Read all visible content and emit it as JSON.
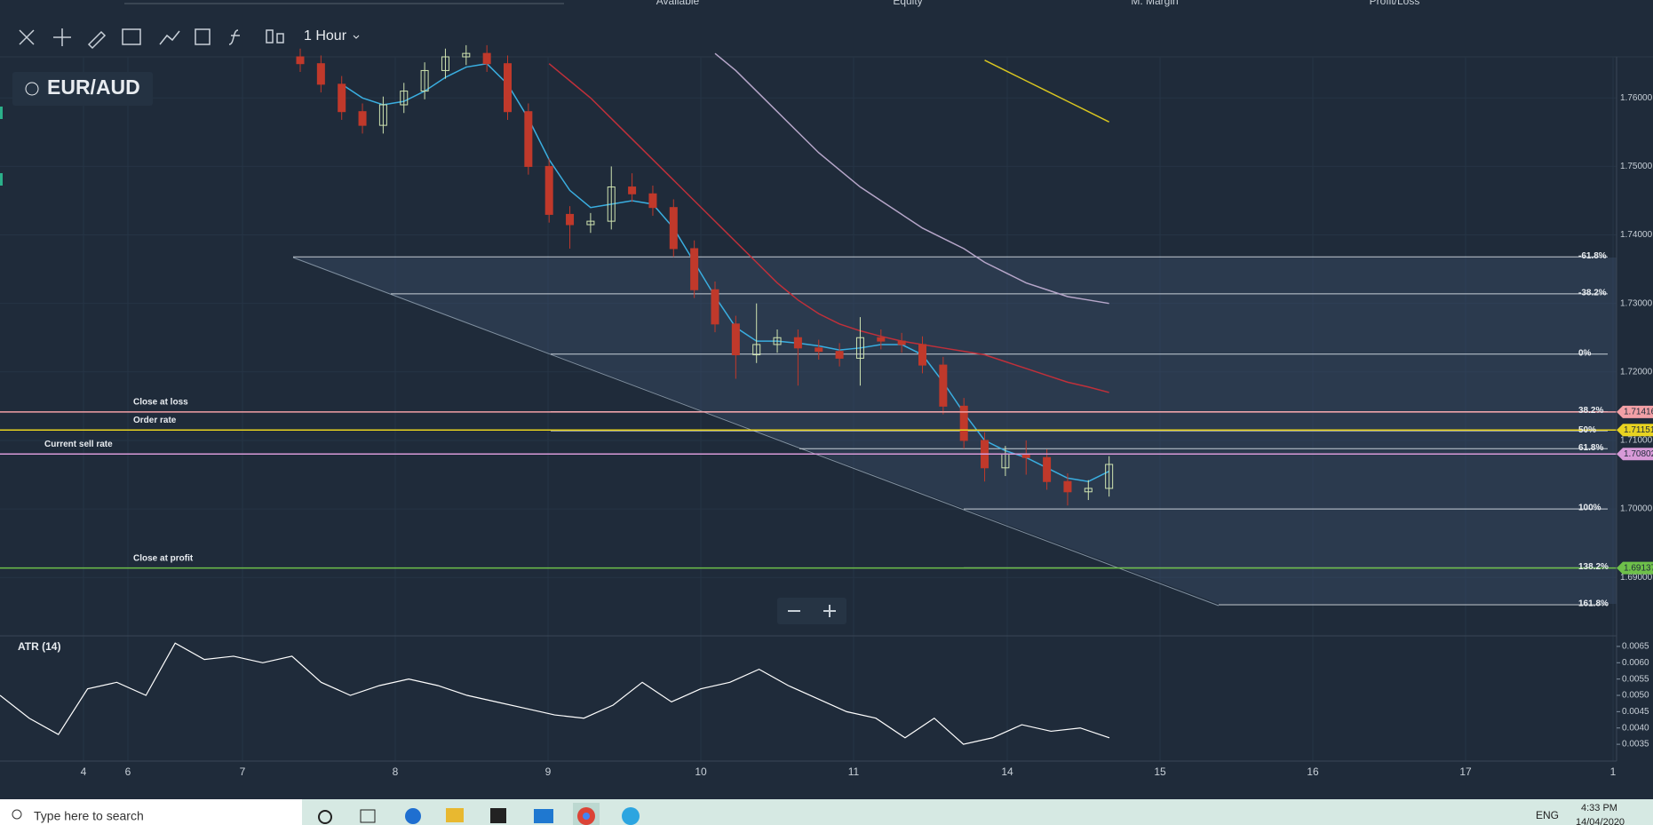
{
  "header": {
    "labels": [
      "Available",
      "Equity",
      "M. Margin",
      "Profit/Loss"
    ]
  },
  "toolbar": {
    "timeframe": "1 Hour"
  },
  "chart_data": [
    {
      "type": "candlestick",
      "title": "EUR/AUD",
      "ylim": [
        1.6816,
        1.766
      ],
      "yticks": [
        {
          "value": 1.76,
          "label": "1.76000"
        },
        {
          "value": 1.75,
          "label": "1.75000"
        },
        {
          "value": 1.74,
          "label": "1.74000"
        },
        {
          "value": 1.73,
          "label": "1.73000"
        },
        {
          "value": 1.72,
          "label": "1.72000"
        },
        {
          "value": 1.71,
          "label": "1.71000"
        },
        {
          "value": 1.7,
          "label": "1.70000"
        },
        {
          "value": 1.69,
          "label": "1.69000"
        }
      ],
      "date_labels": [
        "4",
        "6",
        "7",
        "8",
        "9",
        "10",
        "11",
        "14",
        "15",
        "16",
        "17",
        "1"
      ],
      "up_color": "#cfe3b0",
      "down_color": "#c0392b",
      "open": [
        1.766,
        1.765,
        1.762,
        1.758,
        1.756,
        1.759,
        1.761,
        1.764,
        1.766,
        1.7665,
        1.765,
        1.758,
        1.75,
        1.743,
        1.7415,
        1.742,
        1.747,
        1.746,
        1.744,
        1.738,
        1.732,
        1.727,
        1.7225,
        1.724,
        1.725,
        1.7235,
        1.723,
        1.722,
        1.725,
        1.7245,
        1.724,
        1.721,
        1.715,
        1.71,
        1.706,
        1.708,
        1.7075,
        1.704,
        1.7025,
        1.703
      ],
      "high": [
        1.7672,
        1.7662,
        1.7632,
        1.7592,
        1.7602,
        1.7622,
        1.7652,
        1.7672,
        1.7677,
        1.7677,
        1.7662,
        1.7592,
        1.7512,
        1.7442,
        1.7432,
        1.75,
        1.749,
        1.7472,
        1.7452,
        1.7392,
        1.7332,
        1.7282,
        1.73,
        1.7262,
        1.7262,
        1.7247,
        1.7242,
        1.728,
        1.7262,
        1.7257,
        1.7252,
        1.7222,
        1.7162,
        1.7112,
        1.7092,
        1.71,
        1.7087,
        1.7052,
        1.7042,
        1.7077
      ],
      "low": [
        1.7638,
        1.7608,
        1.7568,
        1.7548,
        1.7548,
        1.7578,
        1.7598,
        1.7628,
        1.7648,
        1.7638,
        1.7568,
        1.7488,
        1.7418,
        1.738,
        1.7403,
        1.7408,
        1.7448,
        1.7428,
        1.7368,
        1.7308,
        1.7258,
        1.719,
        1.7213,
        1.7228,
        1.718,
        1.7218,
        1.7208,
        1.718,
        1.7233,
        1.7228,
        1.7198,
        1.7138,
        1.7088,
        1.704,
        1.7048,
        1.705,
        1.7028,
        1.7005,
        1.7013,
        1.7018
      ],
      "close": [
        1.765,
        1.762,
        1.758,
        1.756,
        1.759,
        1.761,
        1.764,
        1.766,
        1.7665,
        1.765,
        1.758,
        1.75,
        1.743,
        1.7415,
        1.742,
        1.747,
        1.746,
        1.744,
        1.738,
        1.732,
        1.727,
        1.7225,
        1.724,
        1.725,
        1.7235,
        1.723,
        1.722,
        1.725,
        1.7245,
        1.724,
        1.721,
        1.715,
        1.71,
        1.706,
        1.708,
        1.7075,
        1.704,
        1.7025,
        1.703,
        1.7065
      ],
      "series": [
        {
          "color": "#3aaee0",
          "values": [
            null,
            null,
            1.762,
            1.76,
            1.759,
            1.7595,
            1.761,
            1.763,
            1.7645,
            1.765,
            1.762,
            1.757,
            1.751,
            1.7465,
            1.744,
            1.7445,
            1.745,
            1.7445,
            1.741,
            1.736,
            1.731,
            1.7265,
            1.7245,
            1.7245,
            1.7242,
            1.7238,
            1.7232,
            1.7235,
            1.724,
            1.724,
            1.7225,
            1.7185,
            1.714,
            1.71,
            1.7085,
            1.7075,
            1.706,
            1.7045,
            1.704,
            1.7055
          ]
        },
        {
          "color": "#c0303a",
          "values": [
            null,
            null,
            null,
            null,
            null,
            null,
            null,
            null,
            null,
            null,
            null,
            null,
            1.765,
            1.7625,
            1.76,
            1.757,
            1.754,
            1.751,
            1.748,
            1.745,
            1.742,
            1.739,
            1.736,
            1.733,
            1.7305,
            1.7285,
            1.727,
            1.726,
            1.7252,
            1.7245,
            1.724,
            1.7235,
            1.723,
            1.7225,
            1.7215,
            1.7205,
            1.7195,
            1.7185,
            1.7178,
            1.717
          ]
        },
        {
          "color": "#b6a6c9",
          "values": [
            null,
            null,
            null,
            null,
            null,
            null,
            null,
            null,
            null,
            null,
            null,
            null,
            null,
            null,
            null,
            null,
            null,
            null,
            null,
            null,
            1.7665,
            1.764,
            1.761,
            1.758,
            1.755,
            1.752,
            1.7495,
            1.747,
            1.745,
            1.743,
            1.741,
            1.7395,
            1.738,
            1.736,
            1.7345,
            1.733,
            1.732,
            1.731,
            1.7305,
            1.73
          ]
        },
        {
          "color": "#d8c520",
          "values": [
            null,
            null,
            null,
            null,
            null,
            null,
            null,
            null,
            null,
            null,
            null,
            null,
            null,
            null,
            null,
            null,
            null,
            null,
            null,
            null,
            null,
            null,
            null,
            null,
            null,
            null,
            null,
            null,
            null,
            null,
            null,
            null,
            null,
            1.7655,
            1.764,
            1.7625,
            1.761,
            1.7595,
            1.758,
            1.7565
          ]
        }
      ],
      "fib_levels": [
        {
          "name": "-61.8%",
          "value": 1.7368
        },
        {
          "name": "-38.2%",
          "value": 1.7314
        },
        {
          "name": "0%",
          "value": 1.7226
        },
        {
          "name": "38.2%",
          "value": 1.7142
        },
        {
          "name": "50%",
          "value": 1.7114
        },
        {
          "name": "61.8%",
          "value": 1.7088
        },
        {
          "name": "100%",
          "value": 1.7
        },
        {
          "name": "138.2%",
          "value": 1.6914
        },
        {
          "name": "161.8%",
          "value": 1.686
        }
      ],
      "orders": [
        {
          "name": "Close at loss",
          "value": 1.71416,
          "color": "#f2a0a6"
        },
        {
          "name": "Order rate",
          "value": 1.71151,
          "color": "#e8d320"
        },
        {
          "name": "Current sell rate",
          "value": 1.70802,
          "color": "#d89ad8"
        },
        {
          "name": "Close at profit",
          "value": 1.69137,
          "color": "#6ec04a"
        }
      ]
    },
    {
      "type": "line",
      "title": "ATR (14)",
      "color": "#ffffff",
      "ylim": [
        0.00304,
        0.00677
      ],
      "yticks": [
        0.0035,
        {
          "value": 0.004,
          "label": "0.0040"
        },
        0.0045,
        {
          "value": 0.005,
          "label": "0.0050"
        },
        0.0055,
        {
          "value": 0.006,
          "label": "0.0060"
        },
        0.0065
      ],
      "values": [
        0.005,
        0.0043,
        0.0038,
        0.0052,
        0.0054,
        0.005,
        0.0066,
        0.0061,
        0.0062,
        0.006,
        0.0062,
        0.0054,
        0.005,
        0.0053,
        0.0055,
        0.0053,
        0.005,
        0.0048,
        0.0046,
        0.0044,
        0.0043,
        0.0047,
        0.0054,
        0.0048,
        0.0052,
        0.0054,
        0.0058,
        0.0053,
        0.0049,
        0.0045,
        0.0043,
        0.0037,
        0.0043,
        0.0035,
        0.0037,
        0.0041,
        0.0039,
        0.004,
        0.0037
      ]
    }
  ],
  "taskbar": {
    "search": "Type here to search",
    "language": "ENG",
    "time": "4:33 PM",
    "date": "14/04/2020"
  }
}
